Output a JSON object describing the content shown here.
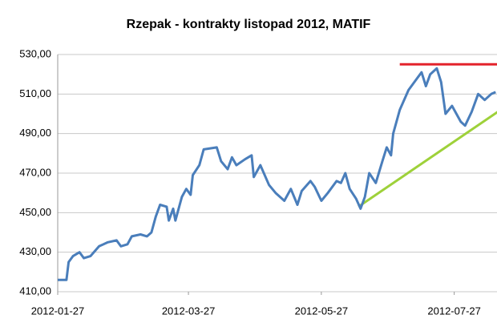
{
  "chart_data": {
    "type": "line",
    "title": "Rzepak - kontrakty listopad 2012, MATIF",
    "x": [
      "2012-01-27",
      "2012-01-31",
      "2012-02-01",
      "2012-02-03",
      "2012-02-06",
      "2012-02-08",
      "2012-02-11",
      "2012-02-15",
      "2012-02-19",
      "2012-02-23",
      "2012-02-25",
      "2012-02-28",
      "2012-03-01",
      "2012-03-05",
      "2012-03-08",
      "2012-03-10",
      "2012-03-12",
      "2012-03-14",
      "2012-03-17",
      "2012-03-18",
      "2012-03-20",
      "2012-03-21",
      "2012-03-24",
      "2012-03-26",
      "2012-03-28",
      "2012-03-29",
      "2012-04-01",
      "2012-04-03",
      "2012-04-09",
      "2012-04-11",
      "2012-04-14",
      "2012-04-16",
      "2012-04-18",
      "2012-04-22",
      "2012-04-25",
      "2012-04-26",
      "2012-04-29",
      "2012-05-03",
      "2012-05-06",
      "2012-05-10",
      "2012-05-13",
      "2012-05-16",
      "2012-05-18",
      "2012-05-22",
      "2012-05-24",
      "2012-05-27",
      "2012-05-30",
      "2012-06-03",
      "2012-06-05",
      "2012-06-07",
      "2012-06-09",
      "2012-06-12",
      "2012-06-14",
      "2012-06-16",
      "2012-06-18",
      "2012-06-21",
      "2012-06-24",
      "2012-06-26",
      "2012-06-28",
      "2012-06-29",
      "2012-07-02",
      "2012-07-06",
      "2012-07-10",
      "2012-07-12",
      "2012-07-14",
      "2012-07-16",
      "2012-07-19",
      "2012-07-21",
      "2012-07-23",
      "2012-07-26",
      "2012-07-30",
      "2012-08-01",
      "2012-08-04",
      "2012-08-07",
      "2012-08-10",
      "2012-08-13",
      "2012-08-15"
    ],
    "series": [
      {
        "color": "#4a7ebb",
        "values": [
          416,
          416,
          425,
          428,
          430,
          427,
          428,
          433,
          435,
          436,
          433,
          434,
          438,
          439,
          438,
          440,
          448,
          454,
          453,
          446,
          452,
          446,
          458,
          462,
          459,
          469,
          474,
          482,
          483,
          476,
          472,
          478,
          474,
          477,
          479,
          468,
          474,
          464,
          460,
          456,
          462,
          454,
          461,
          466,
          463,
          456,
          460,
          466,
          465,
          470,
          462,
          457,
          452,
          458,
          470,
          465,
          476,
          483,
          479,
          490,
          502,
          512,
          518,
          521,
          514,
          520,
          523,
          516,
          500,
          504,
          496,
          494,
          501,
          510,
          507,
          510,
          511
        ]
      }
    ],
    "trend_lines": [
      {
        "color": "#e3222b",
        "x": [
          "2012-07-02",
          "2012-08-16"
        ],
        "values": [
          525,
          525
        ]
      },
      {
        "color": "#9ed13a",
        "x": [
          "2012-06-13",
          "2012-08-16"
        ],
        "values": [
          453,
          501
        ]
      }
    ],
    "xlim": [
      "2012-01-27",
      "2012-08-16"
    ],
    "xticks": [
      "2012-01-27",
      "2012-03-27",
      "2012-05-27",
      "2012-07-27"
    ],
    "ylim": [
      410,
      530
    ],
    "yticks": [
      {
        "value": 410,
        "label": "410,00"
      },
      {
        "value": 430,
        "label": "430,00"
      },
      {
        "value": 450,
        "label": "450,00"
      },
      {
        "value": 470,
        "label": "470,00"
      },
      {
        "value": 490,
        "label": "490,00"
      },
      {
        "value": 510,
        "label": "510,00"
      },
      {
        "value": 530,
        "label": "530,00"
      }
    ],
    "grid": true
  }
}
